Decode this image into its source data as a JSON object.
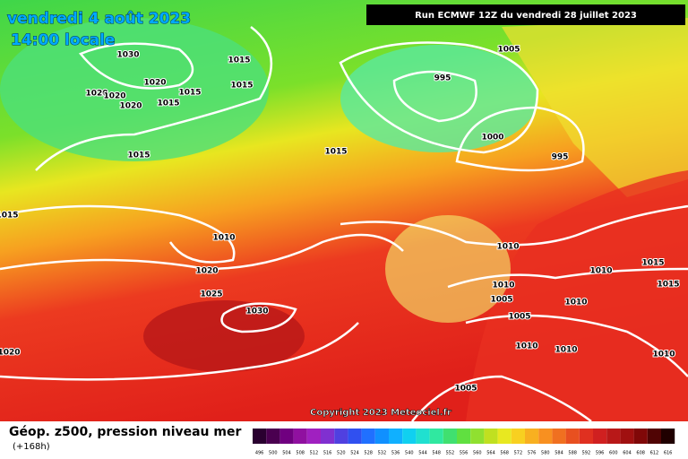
{
  "header": {
    "date": "vendredi 4 août 2023",
    "time": "14:00 locale",
    "run": "Run ECMWF 12Z du vendredi 28 juillet 2023"
  },
  "isobar_labels": [
    "1030",
    "1015",
    "1015",
    "1020",
    "1015",
    "1020",
    "1020",
    "1020",
    "1015",
    "1015",
    "1015",
    "1005",
    "995",
    "1000",
    "995",
    "1015",
    "1010",
    "1020",
    "1025",
    "1030",
    "1020",
    "1010",
    "1010",
    "1015",
    "1015",
    "1010",
    "1005",
    "1010",
    "1005",
    "1010",
    "1010",
    "1010",
    "1005"
  ],
  "copyright": "Copyright 2023 Meteociel.fr",
  "legend": {
    "title": "Géop. z500, pression niveau mer",
    "subtitle": "(+168h)",
    "scale": [
      496,
      500,
      504,
      508,
      512,
      516,
      520,
      524,
      528,
      532,
      536,
      540,
      544,
      548,
      552,
      556,
      560,
      564,
      568,
      572,
      576,
      580,
      584,
      588,
      592,
      596,
      600,
      604,
      608,
      612,
      616
    ]
  }
}
